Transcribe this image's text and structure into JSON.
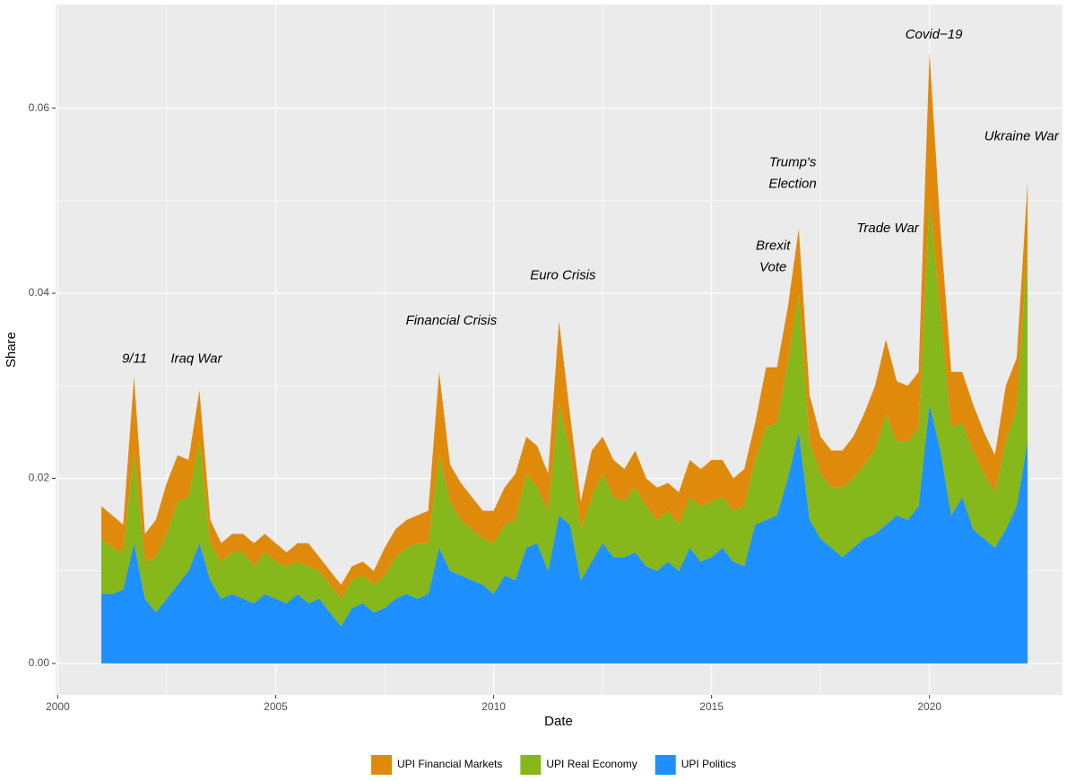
{
  "chart_data": {
    "type": "stacked_area",
    "x_label": "Date",
    "y_label": "Share",
    "x": [
      2001,
      2001.25,
      2001.5,
      2001.75,
      2002,
      2002.25,
      2002.5,
      2002.75,
      2003,
      2003.25,
      2003.5,
      2003.75,
      2004,
      2004.25,
      2004.5,
      2004.75,
      2005,
      2005.25,
      2005.5,
      2005.75,
      2006,
      2006.25,
      2006.5,
      2006.75,
      2007,
      2007.25,
      2007.5,
      2007.75,
      2008,
      2008.25,
      2008.5,
      2008.75,
      2009,
      2009.25,
      2009.5,
      2009.75,
      2010,
      2010.25,
      2010.5,
      2010.75,
      2011,
      2011.25,
      2011.5,
      2011.75,
      2012,
      2012.25,
      2012.5,
      2012.75,
      2013,
      2013.25,
      2013.5,
      2013.75,
      2014,
      2014.25,
      2014.5,
      2014.75,
      2015,
      2015.25,
      2015.5,
      2015.75,
      2016,
      2016.25,
      2016.5,
      2016.75,
      2017,
      2017.25,
      2017.5,
      2017.75,
      2018,
      2018.25,
      2018.5,
      2018.75,
      2019,
      2019.25,
      2019.5,
      2019.75,
      2020,
      2020.25,
      2020.5,
      2020.75,
      2021,
      2021.25,
      2021.5,
      2021.75,
      2022,
      2022.25
    ],
    "series": [
      {
        "name": "UPI Financial Markets",
        "color": "#E08A0C",
        "values": [
          0.0035,
          0.0035,
          0.003,
          0.008,
          0.003,
          0.004,
          0.0055,
          0.005,
          0.004,
          0.0055,
          0.0025,
          0.002,
          0.002,
          0.002,
          0.0025,
          0.002,
          0.002,
          0.0015,
          0.002,
          0.0025,
          0.0015,
          0.0015,
          0.0015,
          0.0015,
          0.0015,
          0.0015,
          0.003,
          0.003,
          0.003,
          0.003,
          0.0035,
          0.009,
          0.004,
          0.004,
          0.0035,
          0.003,
          0.0035,
          0.004,
          0.005,
          0.004,
          0.0045,
          0.004,
          0.009,
          0.004,
          0.003,
          0.005,
          0.004,
          0.004,
          0.0035,
          0.004,
          0.003,
          0.0035,
          0.003,
          0.0035,
          0.004,
          0.004,
          0.0045,
          0.004,
          0.0035,
          0.004,
          0.004,
          0.0065,
          0.006,
          0.006,
          0.007,
          0.005,
          0.004,
          0.004,
          0.004,
          0.0045,
          0.0055,
          0.007,
          0.008,
          0.0065,
          0.006,
          0.006,
          0.016,
          0.009,
          0.006,
          0.0055,
          0.005,
          0.0045,
          0.004,
          0.006,
          0.0055,
          0.007
        ]
      },
      {
        "name": "UPI Real Economy",
        "color": "#86B71B",
        "values": [
          0.006,
          0.005,
          0.004,
          0.01,
          0.004,
          0.006,
          0.007,
          0.009,
          0.008,
          0.011,
          0.004,
          0.004,
          0.0045,
          0.005,
          0.004,
          0.0045,
          0.004,
          0.004,
          0.0035,
          0.004,
          0.003,
          0.003,
          0.003,
          0.003,
          0.003,
          0.003,
          0.0035,
          0.0045,
          0.005,
          0.006,
          0.0055,
          0.01,
          0.0075,
          0.006,
          0.0055,
          0.005,
          0.0055,
          0.0055,
          0.0065,
          0.008,
          0.006,
          0.0065,
          0.012,
          0.008,
          0.0055,
          0.007,
          0.0075,
          0.0065,
          0.006,
          0.007,
          0.0065,
          0.0055,
          0.0055,
          0.005,
          0.0055,
          0.006,
          0.006,
          0.0055,
          0.0055,
          0.0065,
          0.007,
          0.01,
          0.01,
          0.0125,
          0.015,
          0.0085,
          0.007,
          0.0065,
          0.0075,
          0.0075,
          0.008,
          0.009,
          0.012,
          0.008,
          0.0085,
          0.0085,
          0.022,
          0.015,
          0.0095,
          0.008,
          0.0085,
          0.007,
          0.006,
          0.0095,
          0.0105,
          0.021
        ]
      },
      {
        "name": "UPI Politics",
        "color": "#1E90FF",
        "values": [
          0.0075,
          0.0075,
          0.008,
          0.013,
          0.007,
          0.0055,
          0.007,
          0.0085,
          0.01,
          0.013,
          0.009,
          0.007,
          0.0075,
          0.007,
          0.0065,
          0.0075,
          0.007,
          0.0065,
          0.0075,
          0.0065,
          0.007,
          0.0055,
          0.004,
          0.006,
          0.0065,
          0.0055,
          0.006,
          0.007,
          0.0075,
          0.007,
          0.0075,
          0.0125,
          0.01,
          0.0095,
          0.009,
          0.0085,
          0.0075,
          0.0095,
          0.009,
          0.0125,
          0.013,
          0.01,
          0.016,
          0.015,
          0.009,
          0.011,
          0.013,
          0.0115,
          0.0115,
          0.012,
          0.0105,
          0.01,
          0.011,
          0.01,
          0.0125,
          0.011,
          0.0115,
          0.0125,
          0.011,
          0.0105,
          0.015,
          0.0155,
          0.016,
          0.02,
          0.025,
          0.0155,
          0.0135,
          0.0125,
          0.0115,
          0.0125,
          0.0135,
          0.014,
          0.015,
          0.016,
          0.0155,
          0.017,
          0.028,
          0.023,
          0.016,
          0.018,
          0.0145,
          0.0135,
          0.0125,
          0.0145,
          0.017,
          0.024
        ]
      }
    ],
    "xlim": [
      1999.95,
      2023.05
    ],
    "xticks": [
      2000,
      2005,
      2010,
      2015,
      2020
    ],
    "ylim": [
      -0.0034,
      0.0712
    ],
    "yticks": [
      {
        "value": 0,
        "label": "0.00"
      },
      {
        "value": 0.02,
        "label": "0.02"
      },
      {
        "value": 0.04,
        "label": "0.04"
      },
      {
        "value": 0.06,
        "label": "0.06"
      }
    ],
    "grid": true,
    "legend": "bottom",
    "annotations": [
      {
        "lines": [
          "9/11"
        ],
        "x": 2001.76,
        "y": 0.0329
      },
      {
        "lines": [
          "Iraq War"
        ],
        "x": 2003.18,
        "y": 0.0329
      },
      {
        "lines": [
          "Financial Crisis"
        ],
        "x": 2009.03,
        "y": 0.037
      },
      {
        "lines": [
          "Euro Crisis"
        ],
        "x": 2011.59,
        "y": 0.0419
      },
      {
        "lines": [
          "Brexit",
          "Vote"
        ],
        "x": 2016.41,
        "y": 0.0451
      },
      {
        "lines": [
          "Trump's",
          "Election"
        ],
        "x": 2016.86,
        "y": 0.0541
      },
      {
        "lines": [
          "Trade War"
        ],
        "x": 2019.04,
        "y": 0.047
      },
      {
        "lines": [
          "Covid−19"
        ],
        "x": 2020.1,
        "y": 0.0679
      },
      {
        "lines": [
          "Ukraine War"
        ],
        "x": 2022.11,
        "y": 0.0569
      }
    ]
  }
}
